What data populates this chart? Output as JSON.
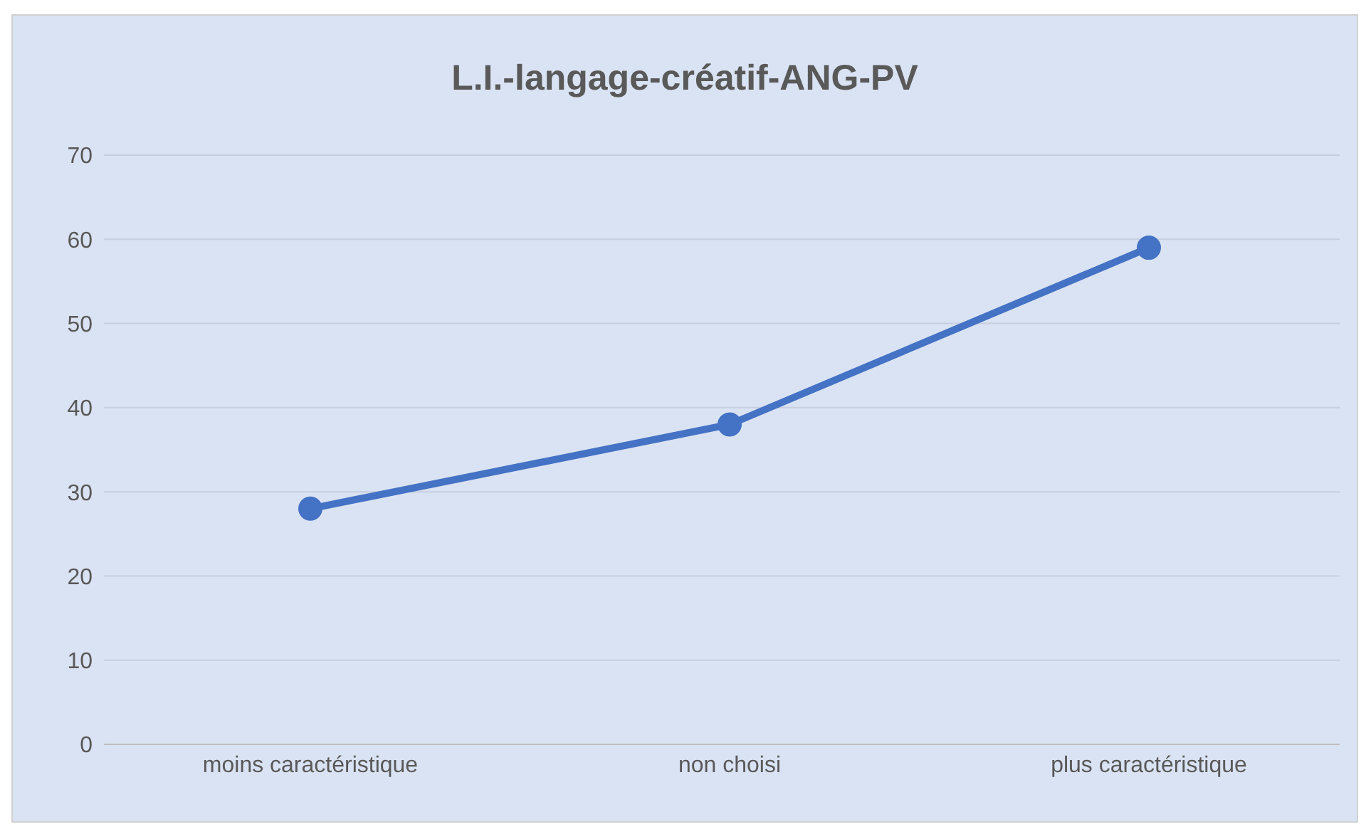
{
  "chart_data": {
    "type": "line",
    "title": "L.I.-langage-créatif-ANG-PV",
    "categories": [
      "moins caractéristique",
      "non choisi",
      "plus caractéristique"
    ],
    "series": [
      {
        "color": "#4472c4",
        "values": [
          28,
          38,
          59
        ]
      }
    ],
    "ylim": [
      0,
      70
    ],
    "yticks": [
      0,
      10,
      20,
      30,
      40,
      50,
      60,
      70
    ],
    "grid": "y",
    "legend": false,
    "marker": "circle",
    "line_style": "solid"
  }
}
